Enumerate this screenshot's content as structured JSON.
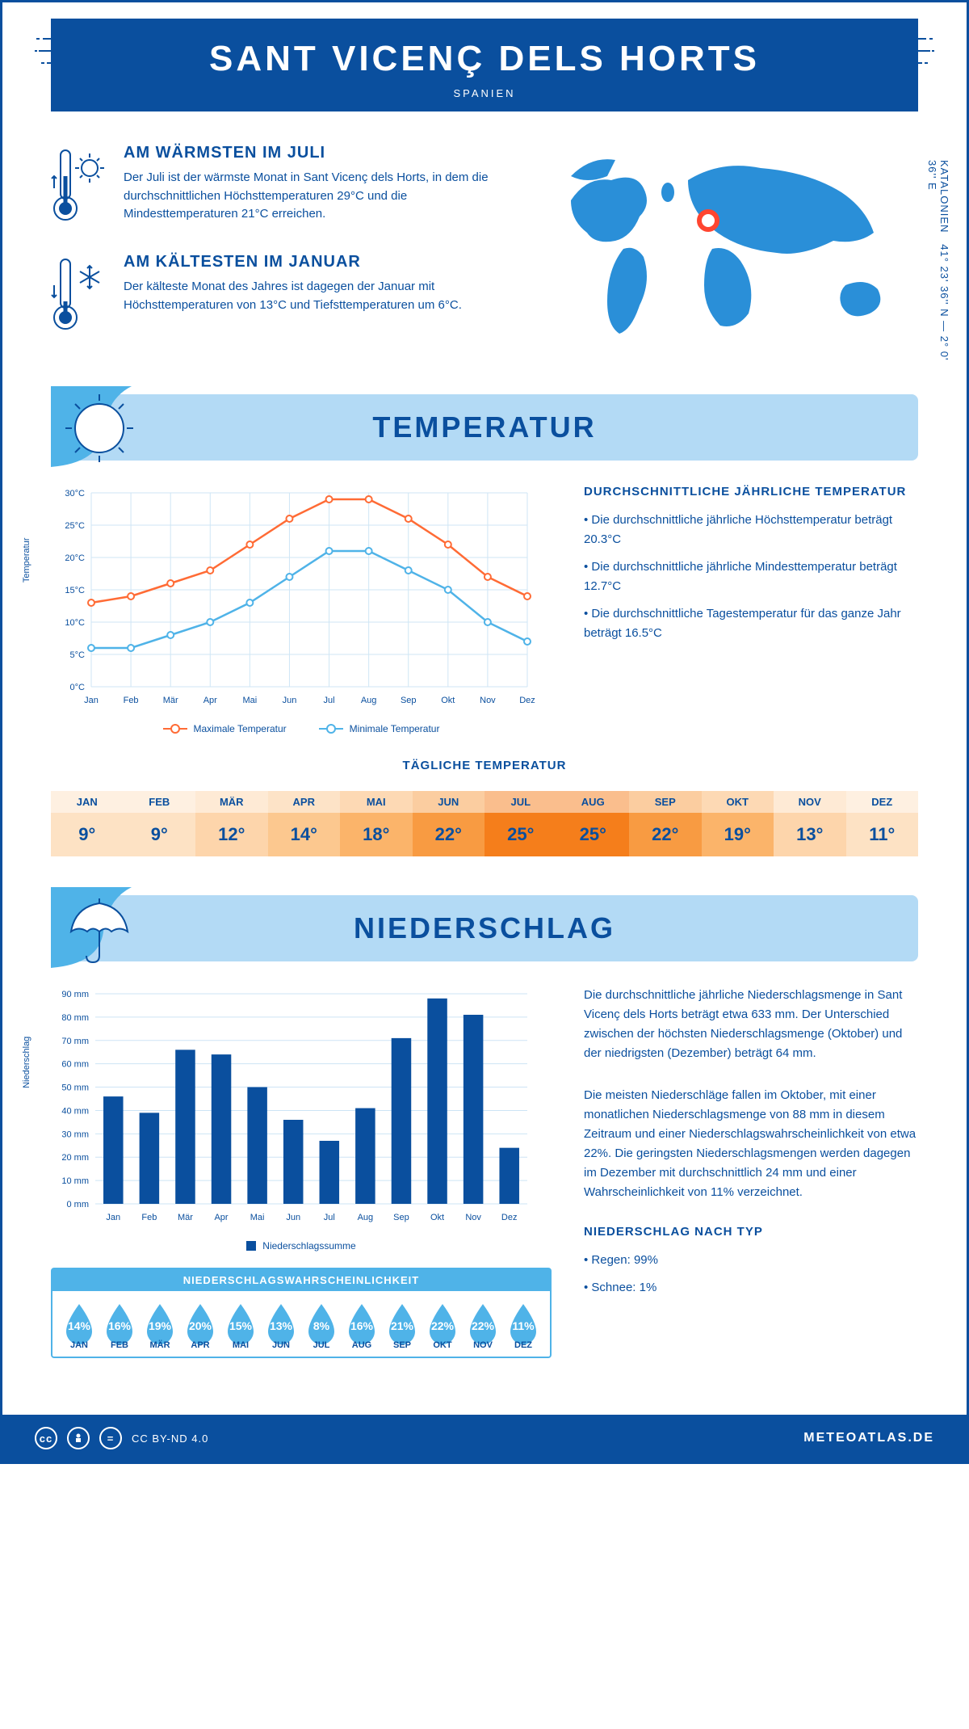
{
  "header": {
    "title": "SANT VICENÇ DELS HORTS",
    "subtitle": "SPANIEN"
  },
  "coords": "41° 23' 36'' N — 2° 0' 36'' E",
  "region": "KATALONIEN",
  "warmest": {
    "title": "AM WÄRMSTEN IM JULI",
    "text": "Der Juli ist der wärmste Monat in Sant Vicenç dels Horts, in dem die durchschnittlichen Höchsttemperaturen 29°C und die Mindesttemperaturen 21°C erreichen."
  },
  "coldest": {
    "title": "AM KÄLTESTEN IM JANUAR",
    "text": "Der kälteste Monat des Jahres ist dagegen der Januar mit Höchsttemperaturen von 13°C und Tiefsttemperaturen um 6°C."
  },
  "sections": {
    "temp": "TEMPERATUR",
    "precip": "NIEDERSCHLAG"
  },
  "temp_chart": {
    "months": [
      "Jan",
      "Feb",
      "Mär",
      "Apr",
      "Mai",
      "Jun",
      "Jul",
      "Aug",
      "Sep",
      "Okt",
      "Nov",
      "Dez"
    ],
    "max": [
      13,
      14,
      16,
      18,
      22,
      26,
      29,
      29,
      26,
      22,
      17,
      14
    ],
    "min": [
      6,
      6,
      8,
      10,
      13,
      17,
      21,
      21,
      18,
      15,
      10,
      7
    ],
    "ylabel": "Temperatur",
    "yrange": [
      0,
      30
    ],
    "ytick": 5,
    "max_color": "#ff6b35",
    "min_color": "#4fb3e8",
    "grid_color": "#cfe6f5",
    "legend_max": "Maximale Temperatur",
    "legend_min": "Minimale Temperatur"
  },
  "temp_text": {
    "heading": "DURCHSCHNITTLICHE JÄHRLICHE TEMPERATUR",
    "b1": "• Die durchschnittliche jährliche Höchsttemperatur beträgt 20.3°C",
    "b2": "• Die durchschnittliche jährliche Mindesttemperatur beträgt 12.7°C",
    "b3": "• Die durchschnittliche Tagestemperatur für das ganze Jahr beträgt 16.5°C"
  },
  "daily_temp": {
    "title": "TÄGLICHE TEMPERATUR",
    "months": [
      "JAN",
      "FEB",
      "MÄR",
      "APR",
      "MAI",
      "JUN",
      "JUL",
      "AUG",
      "SEP",
      "OKT",
      "NOV",
      "DEZ"
    ],
    "values": [
      "9°",
      "9°",
      "12°",
      "14°",
      "18°",
      "22°",
      "25°",
      "25°",
      "22°",
      "19°",
      "13°",
      "11°"
    ],
    "colors": [
      "#fde2c4",
      "#fde2c4",
      "#fdd5ab",
      "#fcc88f",
      "#fbb46a",
      "#f89b42",
      "#f57e1b",
      "#f57e1b",
      "#f89b42",
      "#fbb46a",
      "#fdd5ab",
      "#fde2c4"
    ]
  },
  "precip_chart": {
    "months": [
      "Jan",
      "Feb",
      "Mär",
      "Apr",
      "Mai",
      "Jun",
      "Jul",
      "Aug",
      "Sep",
      "Okt",
      "Nov",
      "Dez"
    ],
    "values": [
      46,
      39,
      66,
      64,
      50,
      36,
      27,
      41,
      71,
      88,
      81,
      24
    ],
    "ylabel": "Niederschlag",
    "yrange": [
      0,
      90
    ],
    "ytick": 10,
    "bar_color": "#0a4f9e",
    "grid_color": "#cde4f5",
    "legend": "Niederschlagssumme"
  },
  "precip_text": {
    "p1": "Die durchschnittliche jährliche Niederschlagsmenge in Sant Vicenç dels Horts beträgt etwa 633 mm. Der Unterschied zwischen der höchsten Niederschlagsmenge (Oktober) und der niedrigsten (Dezember) beträgt 64 mm.",
    "p2": "Die meisten Niederschläge fallen im Oktober, mit einer monatlichen Niederschlagsmenge von 88 mm in diesem Zeitraum und einer Niederschlagswahrscheinlichkeit von etwa 22%. Die geringsten Niederschlagsmengen werden dagegen im Dezember mit durchschnittlich 24 mm und einer Wahrscheinlichkeit von 11% verzeichnet.",
    "type_title": "NIEDERSCHLAG NACH TYP",
    "type1": "• Regen: 99%",
    "type2": "• Schnee: 1%"
  },
  "precip_prob": {
    "title": "NIEDERSCHLAGSWAHRSCHEINLICHKEIT",
    "months": [
      "JAN",
      "FEB",
      "MÄR",
      "APR",
      "MAI",
      "JUN",
      "JUL",
      "AUG",
      "SEP",
      "OKT",
      "NOV",
      "DEZ"
    ],
    "values": [
      "14%",
      "16%",
      "19%",
      "20%",
      "15%",
      "13%",
      "8%",
      "16%",
      "21%",
      "22%",
      "22%",
      "11%"
    ],
    "drop_color": "#4fb3e8"
  },
  "footer": {
    "license": "CC BY-ND 4.0",
    "site": "METEOATLAS.DE"
  }
}
